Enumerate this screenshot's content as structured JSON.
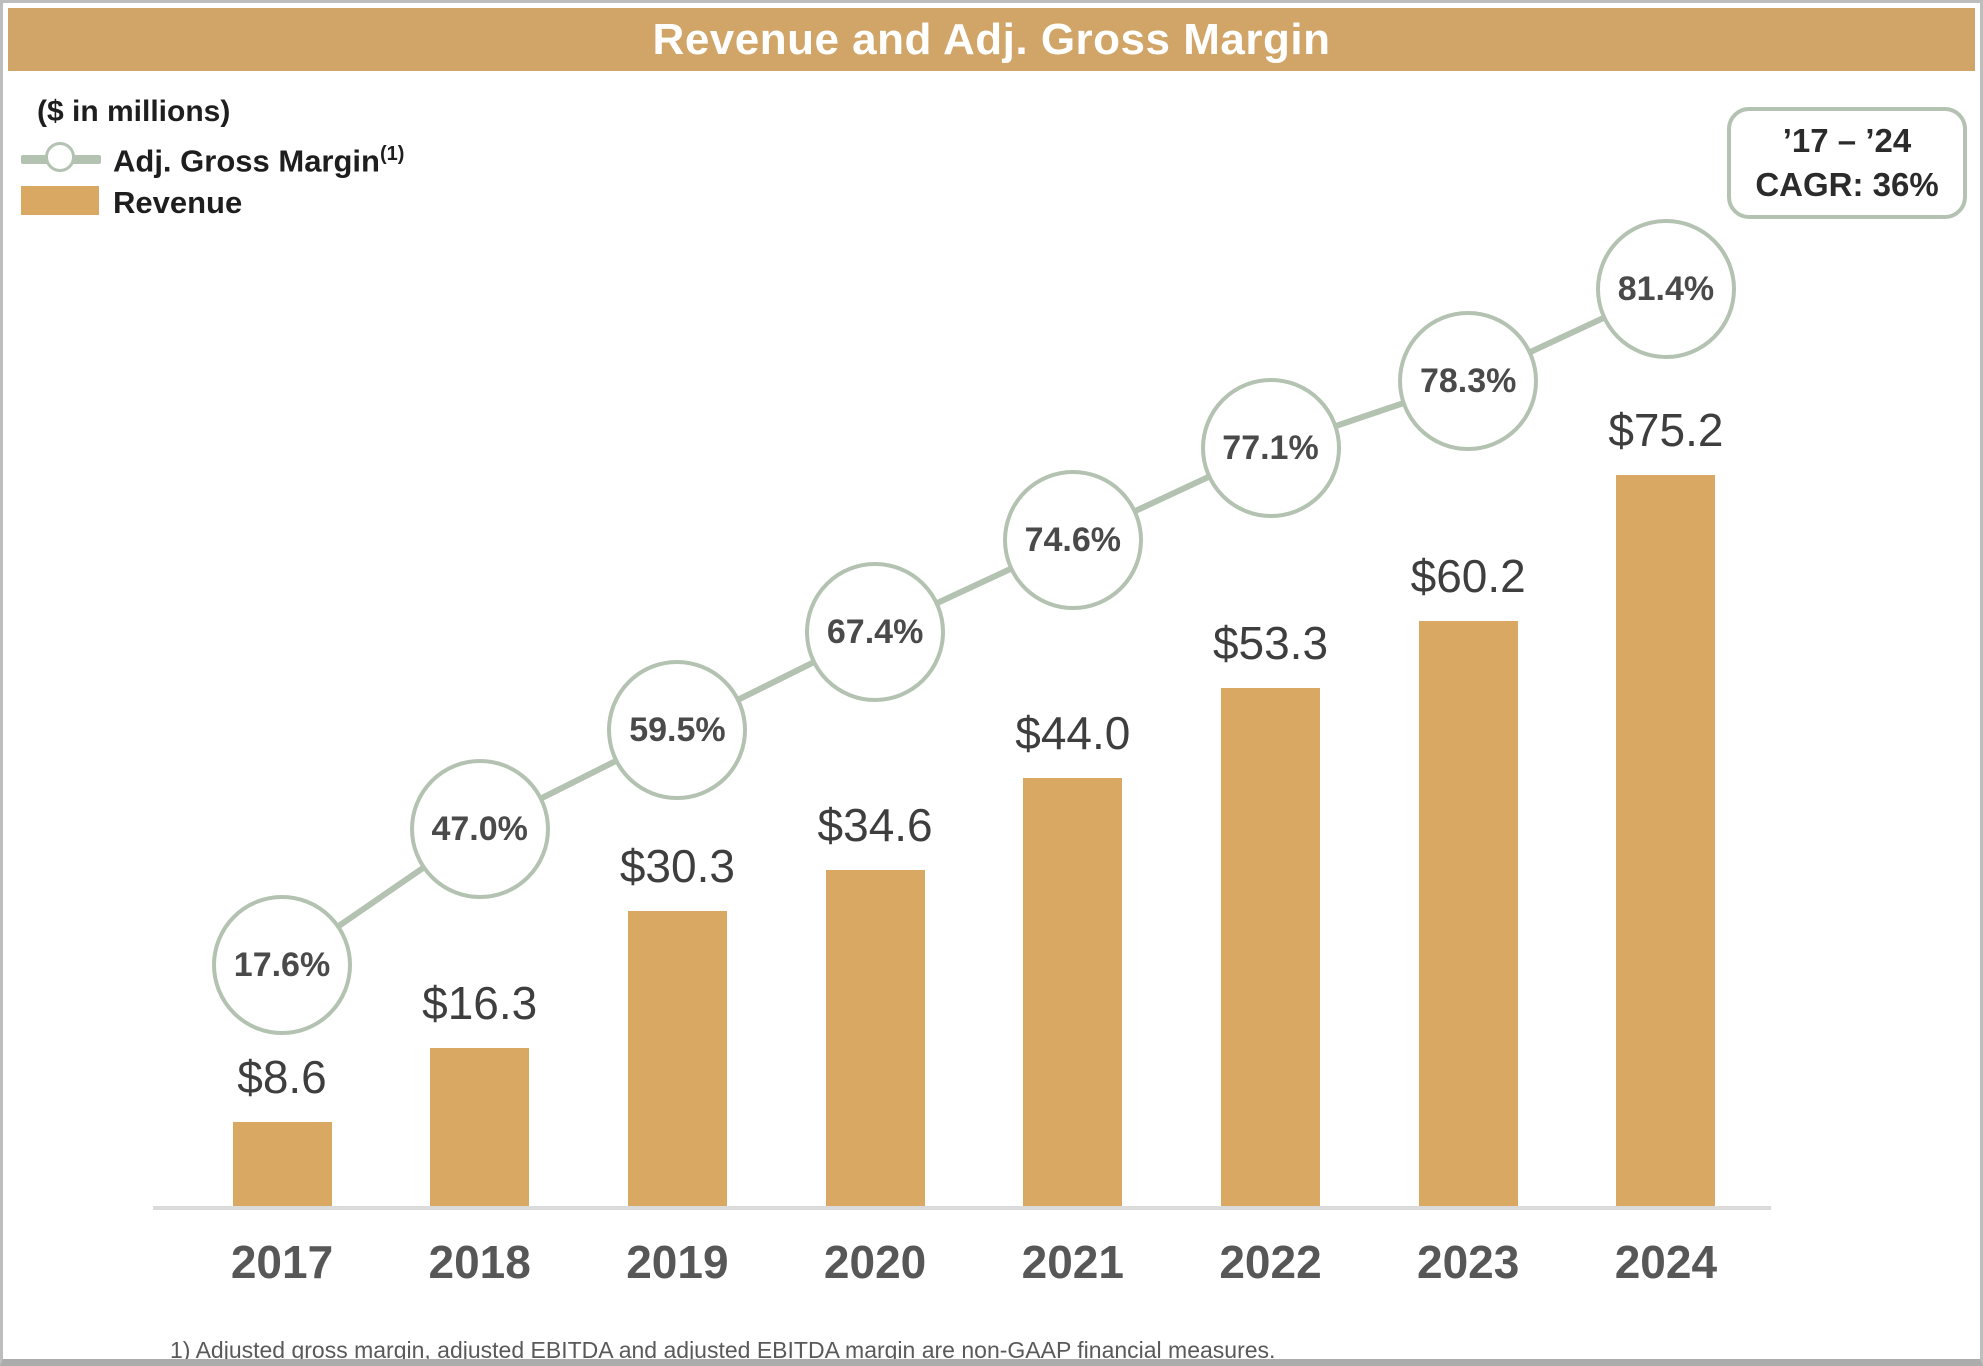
{
  "title": "Revenue and Adj. Gross Margin",
  "legend": {
    "units_note": "($ in millions)",
    "margin_label": "Adj. Gross Margin",
    "margin_ref": "(1)",
    "revenue_label": "Revenue"
  },
  "cagr_box": {
    "line1": "’17 – ’24",
    "line2": "CAGR: 36%"
  },
  "footnote": "1) Adjusted gross margin, adjusted EBITDA and adjusted EBITDA margin are non-GAAP financial measures.",
  "colors": {
    "title_bar_tan": "#d0a567",
    "bar_tan": "#d9a963",
    "sage": "#b3c2b1",
    "axis_gray": "#dbdbdb",
    "value_text": "#3e3e3e",
    "year_text": "#575757",
    "circle_text": "#4a4a4a"
  },
  "chart_data": {
    "type": "bar",
    "subtype": "bar-with-line-markers",
    "title": "Revenue and Adj. Gross Margin",
    "categories": [
      "2017",
      "2018",
      "2019",
      "2020",
      "2021",
      "2022",
      "2023",
      "2024"
    ],
    "series": [
      {
        "name": "Revenue",
        "type": "bar",
        "unit": "$ in millions",
        "values": [
          8.6,
          16.3,
          30.3,
          34.6,
          44.0,
          53.3,
          60.2,
          75.2
        ],
        "labels": [
          "$8.6",
          "$16.3",
          "$30.3",
          "$34.6",
          "$44.0",
          "$53.3",
          "$60.2",
          "$75.2"
        ]
      },
      {
        "name": "Adj. Gross Margin",
        "type": "line",
        "unit": "%",
        "values": [
          17.6,
          47.0,
          59.5,
          67.4,
          74.6,
          77.1,
          78.3,
          81.4
        ],
        "labels": [
          "17.6%",
          "47.0%",
          "59.5%",
          "67.4%",
          "74.6%",
          "77.1%",
          "78.3%",
          "81.4%"
        ]
      }
    ],
    "annotations": [
      "’17 – ’24 CAGR: 36%"
    ],
    "xlabel": "",
    "ylabel": "",
    "ylim": [
      0,
      80
    ],
    "grid": false,
    "legend_position": "top-left"
  }
}
